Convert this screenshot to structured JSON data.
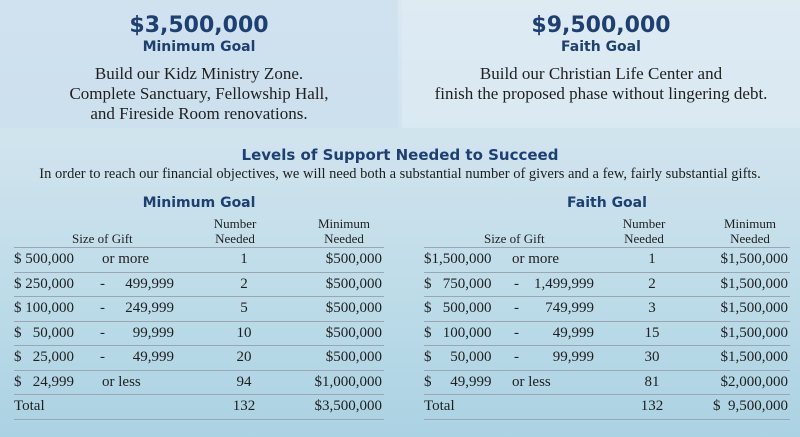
{
  "goals": [
    {
      "amount": "$3,500,000",
      "label": "Minimum Goal",
      "desc": [
        "Build our Kidz Ministry Zone.",
        "Complete Sanctuary, Fellowship Hall,",
        "and Fireside Room renovations."
      ]
    },
    {
      "amount": "$9,500,000",
      "label": "Faith Goal",
      "desc": [
        "Build our Christian Life Center and",
        "finish the proposed phase without lingering debt."
      ]
    }
  ],
  "support": {
    "title": "Levels of Support Needed to Succeed",
    "subtitle": "In order to reach our financial objectives, we will need both a substantial number of givers and a few, fairly substantial gifts."
  },
  "tables": [
    {
      "title": "Minimum Goal",
      "headers": {
        "size": "Size of Gift",
        "number_1": "Number",
        "number_2": "Needed",
        "minimum_1": "Minimum",
        "minimum_2": "Needed"
      },
      "rows": [
        {
          "from": "$ 500,000",
          "sep": "",
          "to": "or more",
          "number": "1",
          "needed": "$500,000"
        },
        {
          "from": "$ 250,000",
          "sep": "-",
          "to": "499,999",
          "number": "2",
          "needed": "$500,000"
        },
        {
          "from": "$ 100,000",
          "sep": "-",
          "to": "249,999",
          "number": "5",
          "needed": "$500,000"
        },
        {
          "from": "$   50,000",
          "sep": "-",
          "to": "99,999",
          "number": "10",
          "needed": "$500,000"
        },
        {
          "from": "$   25,000",
          "sep": "-",
          "to": "49,999",
          "number": "20",
          "needed": "$500,000"
        },
        {
          "from": "$   24,999",
          "sep": "",
          "to": "or less",
          "number": "94",
          "needed": "$1,000,000"
        }
      ],
      "total": {
        "label": "Total",
        "number": "132",
        "needed": "$3,500,000"
      }
    },
    {
      "title": "Faith Goal",
      "headers": {
        "size": "Size of Gift",
        "number_1": "Number",
        "number_2": "Needed",
        "minimum_1": "Minimum",
        "minimum_2": "Needed"
      },
      "rows": [
        {
          "from": "$1,500,000",
          "sep": "",
          "to": "or more",
          "number": "1",
          "needed": "$1,500,000"
        },
        {
          "from": "$   750,000",
          "sep": "-",
          "to": "1,499,999",
          "number": "2",
          "needed": "$1,500,000"
        },
        {
          "from": "$   500,000",
          "sep": "-",
          "to": "749,999",
          "number": "3",
          "needed": "$1,500,000"
        },
        {
          "from": "$   100,000",
          "sep": "-",
          "to": "49,999",
          "number": "15",
          "needed": "$1,500,000"
        },
        {
          "from": "$     50,000",
          "sep": "-",
          "to": "99,999",
          "number": "30",
          "needed": "$1,500,000"
        },
        {
          "from": "$     49,999",
          "sep": "",
          "to": "or less",
          "number": "81",
          "needed": "$2,000,000"
        }
      ],
      "total": {
        "label": "Total",
        "number": "132",
        "needed": "$  9,500,000"
      }
    }
  ]
}
